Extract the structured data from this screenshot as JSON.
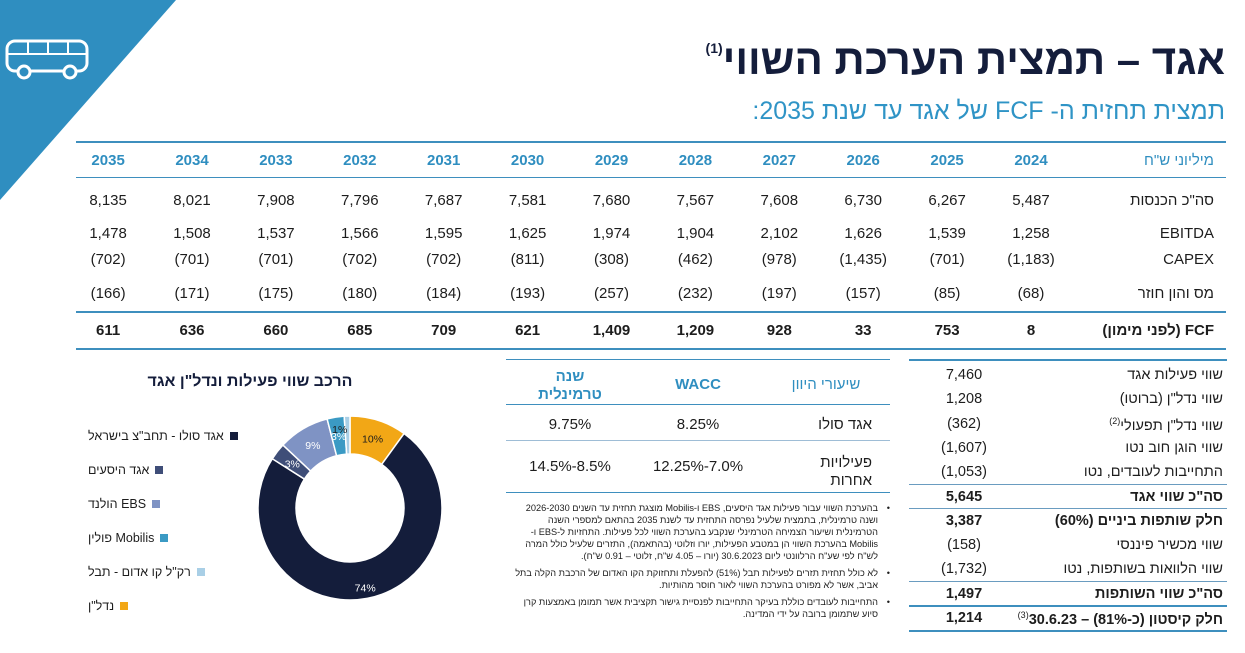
{
  "title": "אגד – תמצית הערכת השווי",
  "title_note": "(1)",
  "subtitle": "תמצית תחזית ה- FCF של אגד עד שנת 2035:",
  "colors": {
    "navy": "#141d3b",
    "accent": "#2f94c6",
    "corner": "#2f8ec0"
  },
  "icons": {
    "logo": "bus-icon"
  },
  "forecast_table": {
    "unit_label": "מיליוני ש\"ח",
    "years": [
      "2024",
      "2025",
      "2026",
      "2027",
      "2028",
      "2029",
      "2030",
      "2031",
      "2032",
      "2033",
      "2034",
      "2035"
    ],
    "rows": [
      {
        "label": "סה\"כ הכנסות",
        "values": [
          "5,487",
          "6,267",
          "6,730",
          "7,608",
          "7,567",
          "7,680",
          "7,581",
          "7,687",
          "7,796",
          "7,908",
          "8,021",
          "8,135"
        ]
      },
      {
        "label": "EBITDA",
        "values": [
          "1,258",
          "1,539",
          "1,626",
          "2,102",
          "1,904",
          "1,974",
          "1,625",
          "1,595",
          "1,566",
          "1,537",
          "1,508",
          "1,478"
        ]
      },
      {
        "label": "CAPEX",
        "values": [
          "(1,183)",
          "(701)",
          "(1,435)",
          "(978)",
          "(462)",
          "(308)",
          "(811)",
          "(702)",
          "(702)",
          "(701)",
          "(701)",
          "(702)"
        ]
      },
      {
        "label": "מס והון חוזר",
        "values": [
          "(68)",
          "(85)",
          "(157)",
          "(197)",
          "(232)",
          "(257)",
          "(193)",
          "(184)",
          "(180)",
          "(175)",
          "(171)",
          "(166)"
        ]
      }
    ],
    "fcf_row": {
      "label": "FCF (לפני מימון)",
      "values": [
        "8",
        "753",
        "33",
        "928",
        "1,209",
        "1,409",
        "621",
        "709",
        "685",
        "660",
        "636",
        "611"
      ]
    }
  },
  "composition_chart": {
    "title": "הרכב שווי פעילות ונדל\"ן אגד",
    "legend": [
      {
        "label": "אגד סולו - תחב\"צ בישראל",
        "color": "#141d3b"
      },
      {
        "label": "אגד היסעים",
        "color": "#3f4e78"
      },
      {
        "label": "EBS הולנד",
        "color": "#7f93c4"
      },
      {
        "label": "Mobilis פולין",
        "color": "#3b9ac4"
      },
      {
        "label": "רק\"ל קו אדום - תבל",
        "color": "#a9cfe6"
      },
      {
        "label": "נדל\"ן",
        "color": "#f2a716"
      }
    ]
  },
  "chart_data": {
    "type": "pie",
    "donut": true,
    "categories": [
      "אגד סולו - תחב\"צ בישראל",
      "אגד היסעים",
      "EBS הולנד",
      "Mobilis פולין",
      "רק\"ל קו אדום - תבל",
      "נדל\"ן"
    ],
    "values": [
      74,
      3,
      9,
      3,
      1,
      10
    ],
    "data_labels": [
      "74%",
      "3%",
      "9%",
      "3%",
      "1%",
      "10%"
    ],
    "title": "הרכב שווי פעילות ונדל\"ן אגד",
    "legend": "left"
  },
  "wacc_table": {
    "header_label": "שיעורי היוון",
    "header_wacc": "WACC",
    "header_terminal": "שנה טרמינלית",
    "rows": [
      {
        "label": "אגד סולו",
        "wacc": "8.25%",
        "terminal": "9.75%"
      },
      {
        "label": "פעילויות אחרות",
        "wacc": "12.25%-7.0%",
        "terminal": "14.5%-8.5%"
      }
    ]
  },
  "notes": [
    "בהערכת השווי עבור פעילות אגד היסעים, EBS ו-Mobilis מוצגת תחזית עד השנים 2026-2030 ושנה טרמינלית, בתמצית שלעיל נפרסה התחזית עד לשנת 2035 בהתאם למספרי השנה הטרמינלית ושיעור הצמיחה הטרמינלי שנקבע בהערכת השווי לכל פעילות. התחזיות ל-EBS ו-Mobilis בהערכת השווי הן במטבע הפעילות, יורו וזלוטי (בהתאמה), התזרים שלעיל כולל המרה לש\"ח לפי שע\"ח הרלוונטי ליום 30.6.2023 (יורו – 4.05 ש\"ח, זלוטי – 0.91 ש\"ח).",
    "לא כולל תחזית תזרים לפעילות תבל (51%) להפעלת ותחזוקת הקו האדום של הרכבת הקלה בתל אביב, אשר לא מפורט בהערכת השווי לאור חוסר מהותיות.",
    "התחייבות לעובדים כוללת בעיקר התחייבות לפנסיית גישור תקציבית אשר תמומן באמצעות קרן סיוע שתמומן ברובה על ידי המדינה."
  ],
  "valuation": {
    "rows": [
      {
        "label": "שווי פעילות אגד",
        "value": "7,460",
        "bold": false
      },
      {
        "label": "שווי נדל\"ן (ברוטו)",
        "value": "1,208",
        "bold": false
      },
      {
        "label": "שווי נדל\"ן תפעולי",
        "note": "(2)",
        "value": "(362)",
        "bold": false
      },
      {
        "label": "שווי הוגן חוב נטו",
        "value": "(1,607)",
        "bold": false
      },
      {
        "label": "התחייבות לעובדים, נטו",
        "value": "(1,053)",
        "bold": false
      },
      {
        "label": "סה\"כ שווי אגד",
        "value": "5,645",
        "bold": true
      },
      {
        "label": "חלק שותפות ביניים (60%)",
        "value": "3,387",
        "bold": true
      },
      {
        "label": "שווי מכשיר פיננסי",
        "value": "(158)",
        "bold": false
      },
      {
        "label": "שווי הלוואות בשותפות, נטו",
        "value": "(1,732)",
        "bold": false
      },
      {
        "label": "סה\"כ שווי השותפות",
        "value": "1,497",
        "bold": true
      },
      {
        "label": "חלק קיסטון (כ-81%) – 30.6.23",
        "note": "(3)",
        "value": "1,214",
        "bold": true
      }
    ]
  }
}
